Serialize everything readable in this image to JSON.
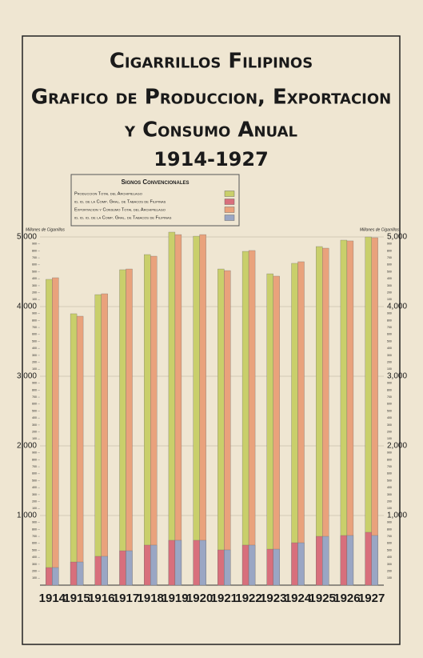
{
  "chart_data": {
    "type": "bar",
    "title": [
      "Cigarrillos Filipinos",
      "Grafico de Produccion, Exportacion",
      "y Consumo Anual"
    ],
    "subtitle": "1914-1927",
    "legend_title": "Signos Convencionales",
    "y_label": "Millones de Cigarrillos",
    "y2_label": "Millones de Cigarrillos",
    "categories": [
      "1914",
      "1915",
      "1916",
      "1917",
      "1918",
      "1919",
      "1920",
      "1921",
      "1922",
      "1923",
      "1924",
      "1925",
      "1926",
      "1927"
    ],
    "series": [
      {
        "name": "Produccion Total del Archipielago",
        "color": "#c9cf6b",
        "values": [
          4391,
          3897,
          4172,
          4529,
          4747,
          5069,
          5011,
          4540,
          4793,
          4471,
          4621,
          4862,
          4954,
          5000
        ]
      },
      {
        "name": "id. id. de la Comp. Gral. de Tabacos de Filipinas",
        "color": "#d86f7c",
        "values": [
          253,
          333,
          414,
          494,
          575,
          644,
          644,
          506,
          575,
          517,
          609,
          701,
          713,
          759
        ]
      },
      {
        "name": "Exportacion y Consumo Total del Archipielago",
        "color": "#e9a27c",
        "values": [
          4414,
          3862,
          4184,
          4540,
          4724,
          5034,
          5034,
          4517,
          4805,
          4437,
          4644,
          4839,
          4943,
          4989
        ]
      },
      {
        "name": "id. id. id. de la Comp. Gral. de Tabacos de Filipinas",
        "color": "#9aa6c4",
        "values": [
          253,
          333,
          414,
          494,
          575,
          644,
          644,
          506,
          575,
          517,
          609,
          701,
          713,
          713
        ]
      }
    ],
    "ylim": [
      0,
      5000
    ],
    "yticks": [
      {
        "value": 1000,
        "label": "1,000"
      },
      {
        "value": 2000,
        "label": "2,000"
      },
      {
        "value": 3000,
        "label": "3,000"
      },
      {
        "value": 4000,
        "label": "4,000"
      },
      {
        "value": 5000,
        "label": "5,000"
      }
    ],
    "yticks_minor": [
      100,
      200,
      300,
      400,
      500,
      600,
      700,
      800,
      900,
      {
        "value": 1100,
        "label": "100"
      },
      {
        "value": 1200,
        "label": "200"
      },
      {
        "value": 1300,
        "label": "300"
      },
      {
        "value": 1400,
        "label": "400"
      },
      {
        "value": 1500,
        "label": "500"
      },
      {
        "value": 1600,
        "label": "600"
      },
      {
        "value": 1700,
        "label": "700"
      },
      {
        "value": 1800,
        "label": "800"
      },
      {
        "value": 1900,
        "label": "900"
      },
      {
        "value": 2100,
        "label": "100"
      },
      {
        "value": 2200,
        "label": "200"
      },
      {
        "value": 2300,
        "label": "300"
      },
      {
        "value": 2400,
        "label": "400"
      },
      {
        "value": 2500,
        "label": "500"
      },
      {
        "value": 2600,
        "label": "600"
      },
      {
        "value": 2700,
        "label": "700"
      },
      {
        "value": 2800,
        "label": "800"
      },
      {
        "value": 2900,
        "label": "900"
      },
      {
        "value": 3100,
        "label": "100"
      },
      {
        "value": 3200,
        "label": "200"
      },
      {
        "value": 3300,
        "label": "300"
      },
      {
        "value": 3400,
        "label": "400"
      },
      {
        "value": 3500,
        "label": "500"
      },
      {
        "value": 3600,
        "label": "600"
      },
      {
        "value": 3700,
        "label": "700"
      },
      {
        "value": 3800,
        "label": "800"
      },
      {
        "value": 3900,
        "label": "900"
      },
      {
        "value": 4100,
        "label": "100"
      },
      {
        "value": 4200,
        "label": "200"
      },
      {
        "value": 4300,
        "label": "300"
      },
      {
        "value": 4400,
        "label": "400"
      },
      {
        "value": 4500,
        "label": "500"
      },
      {
        "value": 4600,
        "label": "600"
      },
      {
        "value": 4700,
        "label": "700"
      },
      {
        "value": 4800,
        "label": "800"
      },
      {
        "value": 4900,
        "label": "900"
      }
    ],
    "grid": true
  }
}
